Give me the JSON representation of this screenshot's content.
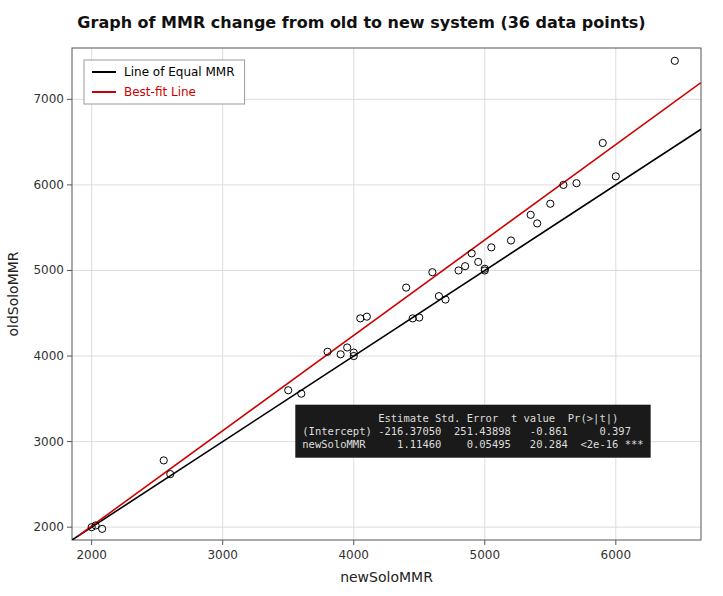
{
  "chart_data": {
    "type": "scatter",
    "title": "Graph of MMR change from old to new system (36 data points)",
    "x_label": "newSoloMMR",
    "y_label": "oldSoloMMR",
    "xlim": [
      1850,
      6650
    ],
    "ylim": [
      1850,
      7600
    ],
    "xticks": [
      2000,
      3000,
      4000,
      5000,
      6000
    ],
    "yticks": [
      2000,
      3000,
      4000,
      5000,
      6000,
      7000
    ],
    "grid": true,
    "legend": "upper left",
    "series": [
      {
        "type": "scatter",
        "color": "#000000",
        "marker": "circle",
        "x": [
          2000,
          2030,
          2080,
          2550,
          2600,
          3500,
          3600,
          3800,
          3900,
          3950,
          4000,
          4000,
          4050,
          4100,
          4400,
          4450,
          4500,
          4600,
          4650,
          4700,
          4800,
          4850,
          4900,
          4950,
          5000,
          5000,
          5050,
          5200,
          5350,
          5400,
          5500,
          5600,
          5700,
          5900,
          6000,
          6450
        ],
        "values": [
          2000,
          2020,
          1980,
          2780,
          2620,
          3600,
          3560,
          4050,
          4020,
          4100,
          4000,
          4040,
          4440,
          4460,
          4800,
          4440,
          4450,
          4980,
          4700,
          4660,
          5000,
          5050,
          5200,
          5100,
          5020,
          5000,
          5270,
          5350,
          5650,
          5550,
          5780,
          6000,
          6020,
          6490,
          6100,
          7450
        ]
      },
      {
        "name": "Line of Equal MMR",
        "type": "line",
        "color": "#000000",
        "x": [
          1850,
          6650
        ],
        "values": [
          1850,
          6650
        ]
      },
      {
        "name": "Best-fit Line",
        "type": "line",
        "color": "#cc0000",
        "x": [
          1900,
          6650
        ],
        "values": [
          1901.3695,
          7195.7195
        ]
      }
    ],
    "annotations": [
      "            Estimate Std. Error  t value  Pr(>|t|)",
      "(Intercept) -216.37050  251.43898   -0.861     0.397",
      "newSoloMMR     1.11460    0.05495   20.284  <2e-16 ***"
    ]
  }
}
